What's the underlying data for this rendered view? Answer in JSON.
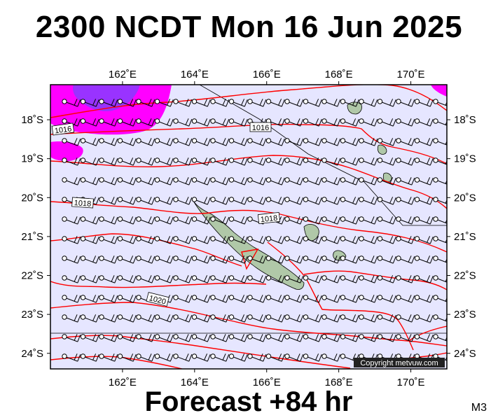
{
  "header": {
    "title": "2300 NCDT Mon 16 Jun 2025"
  },
  "footer": {
    "forecast": "Forecast +84 hr",
    "model_code": "M3"
  },
  "copyright": "Copyright metvuw.com",
  "map": {
    "lon_range": [
      160.0,
      171.0
    ],
    "lat_range": [
      -24.4,
      -17.1
    ],
    "lon_ticks": [
      "162˚E",
      "164˚E",
      "166˚E",
      "168˚E",
      "170˚E"
    ],
    "lon_tick_values": [
      162,
      164,
      166,
      168,
      170
    ],
    "lat_ticks": [
      "18˚S",
      "19˚S",
      "20˚S",
      "21˚S",
      "22˚S",
      "23˚S",
      "24˚S"
    ],
    "lat_tick_values": [
      -18,
      -19,
      -20,
      -21,
      -22,
      -23,
      -24
    ],
    "isobar_labels": [
      "1016",
      "1016",
      "1018",
      "1018",
      "1020"
    ],
    "colors": {
      "background": "#e6e6ff",
      "rain_light": "#ff00ff",
      "rain_heavy": "#9933ff",
      "isobar": "#ff0000",
      "land": "#b0c8a8"
    }
  }
}
